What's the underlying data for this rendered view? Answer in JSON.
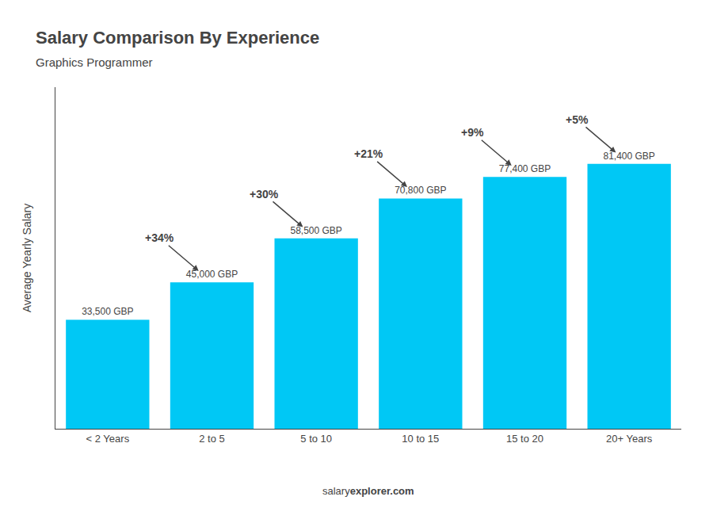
{
  "chart_data": {
    "type": "bar",
    "title": "Salary Comparison By Experience",
    "subtitle": "Graphics Programmer",
    "categories": [
      "< 2 Years",
      "2 to 5",
      "5 to 10",
      "10 to 15",
      "15 to 20",
      "20+ Years"
    ],
    "values": [
      33500,
      45000,
      58500,
      70800,
      77400,
      81400
    ],
    "value_labels": [
      "33,500 GBP",
      "45,000 GBP",
      "58,500 GBP",
      "70,800 GBP",
      "77,400 GBP",
      "81,400 GBP"
    ],
    "data_labels": true,
    "color": "#00c8f5",
    "ylabel": "Average Yearly Salary",
    "ylim": [
      0,
      105000
    ],
    "tick_labels": "x",
    "grid": false,
    "annotations": [
      {
        "text": "+34%",
        "from": "< 2 Years",
        "to": "2 to 5"
      },
      {
        "text": "+30%",
        "from": "2 to 5",
        "to": "5 to 10"
      },
      {
        "text": "+21%",
        "from": "5 to 10",
        "to": "10 to 15"
      },
      {
        "text": "+9%",
        "from": "10 to 15",
        "to": "15 to 20"
      },
      {
        "text": "+5%",
        "from": "15 to 20",
        "to": "20+ Years"
      }
    ],
    "footer": [
      "salary",
      "explorer.com"
    ]
  }
}
